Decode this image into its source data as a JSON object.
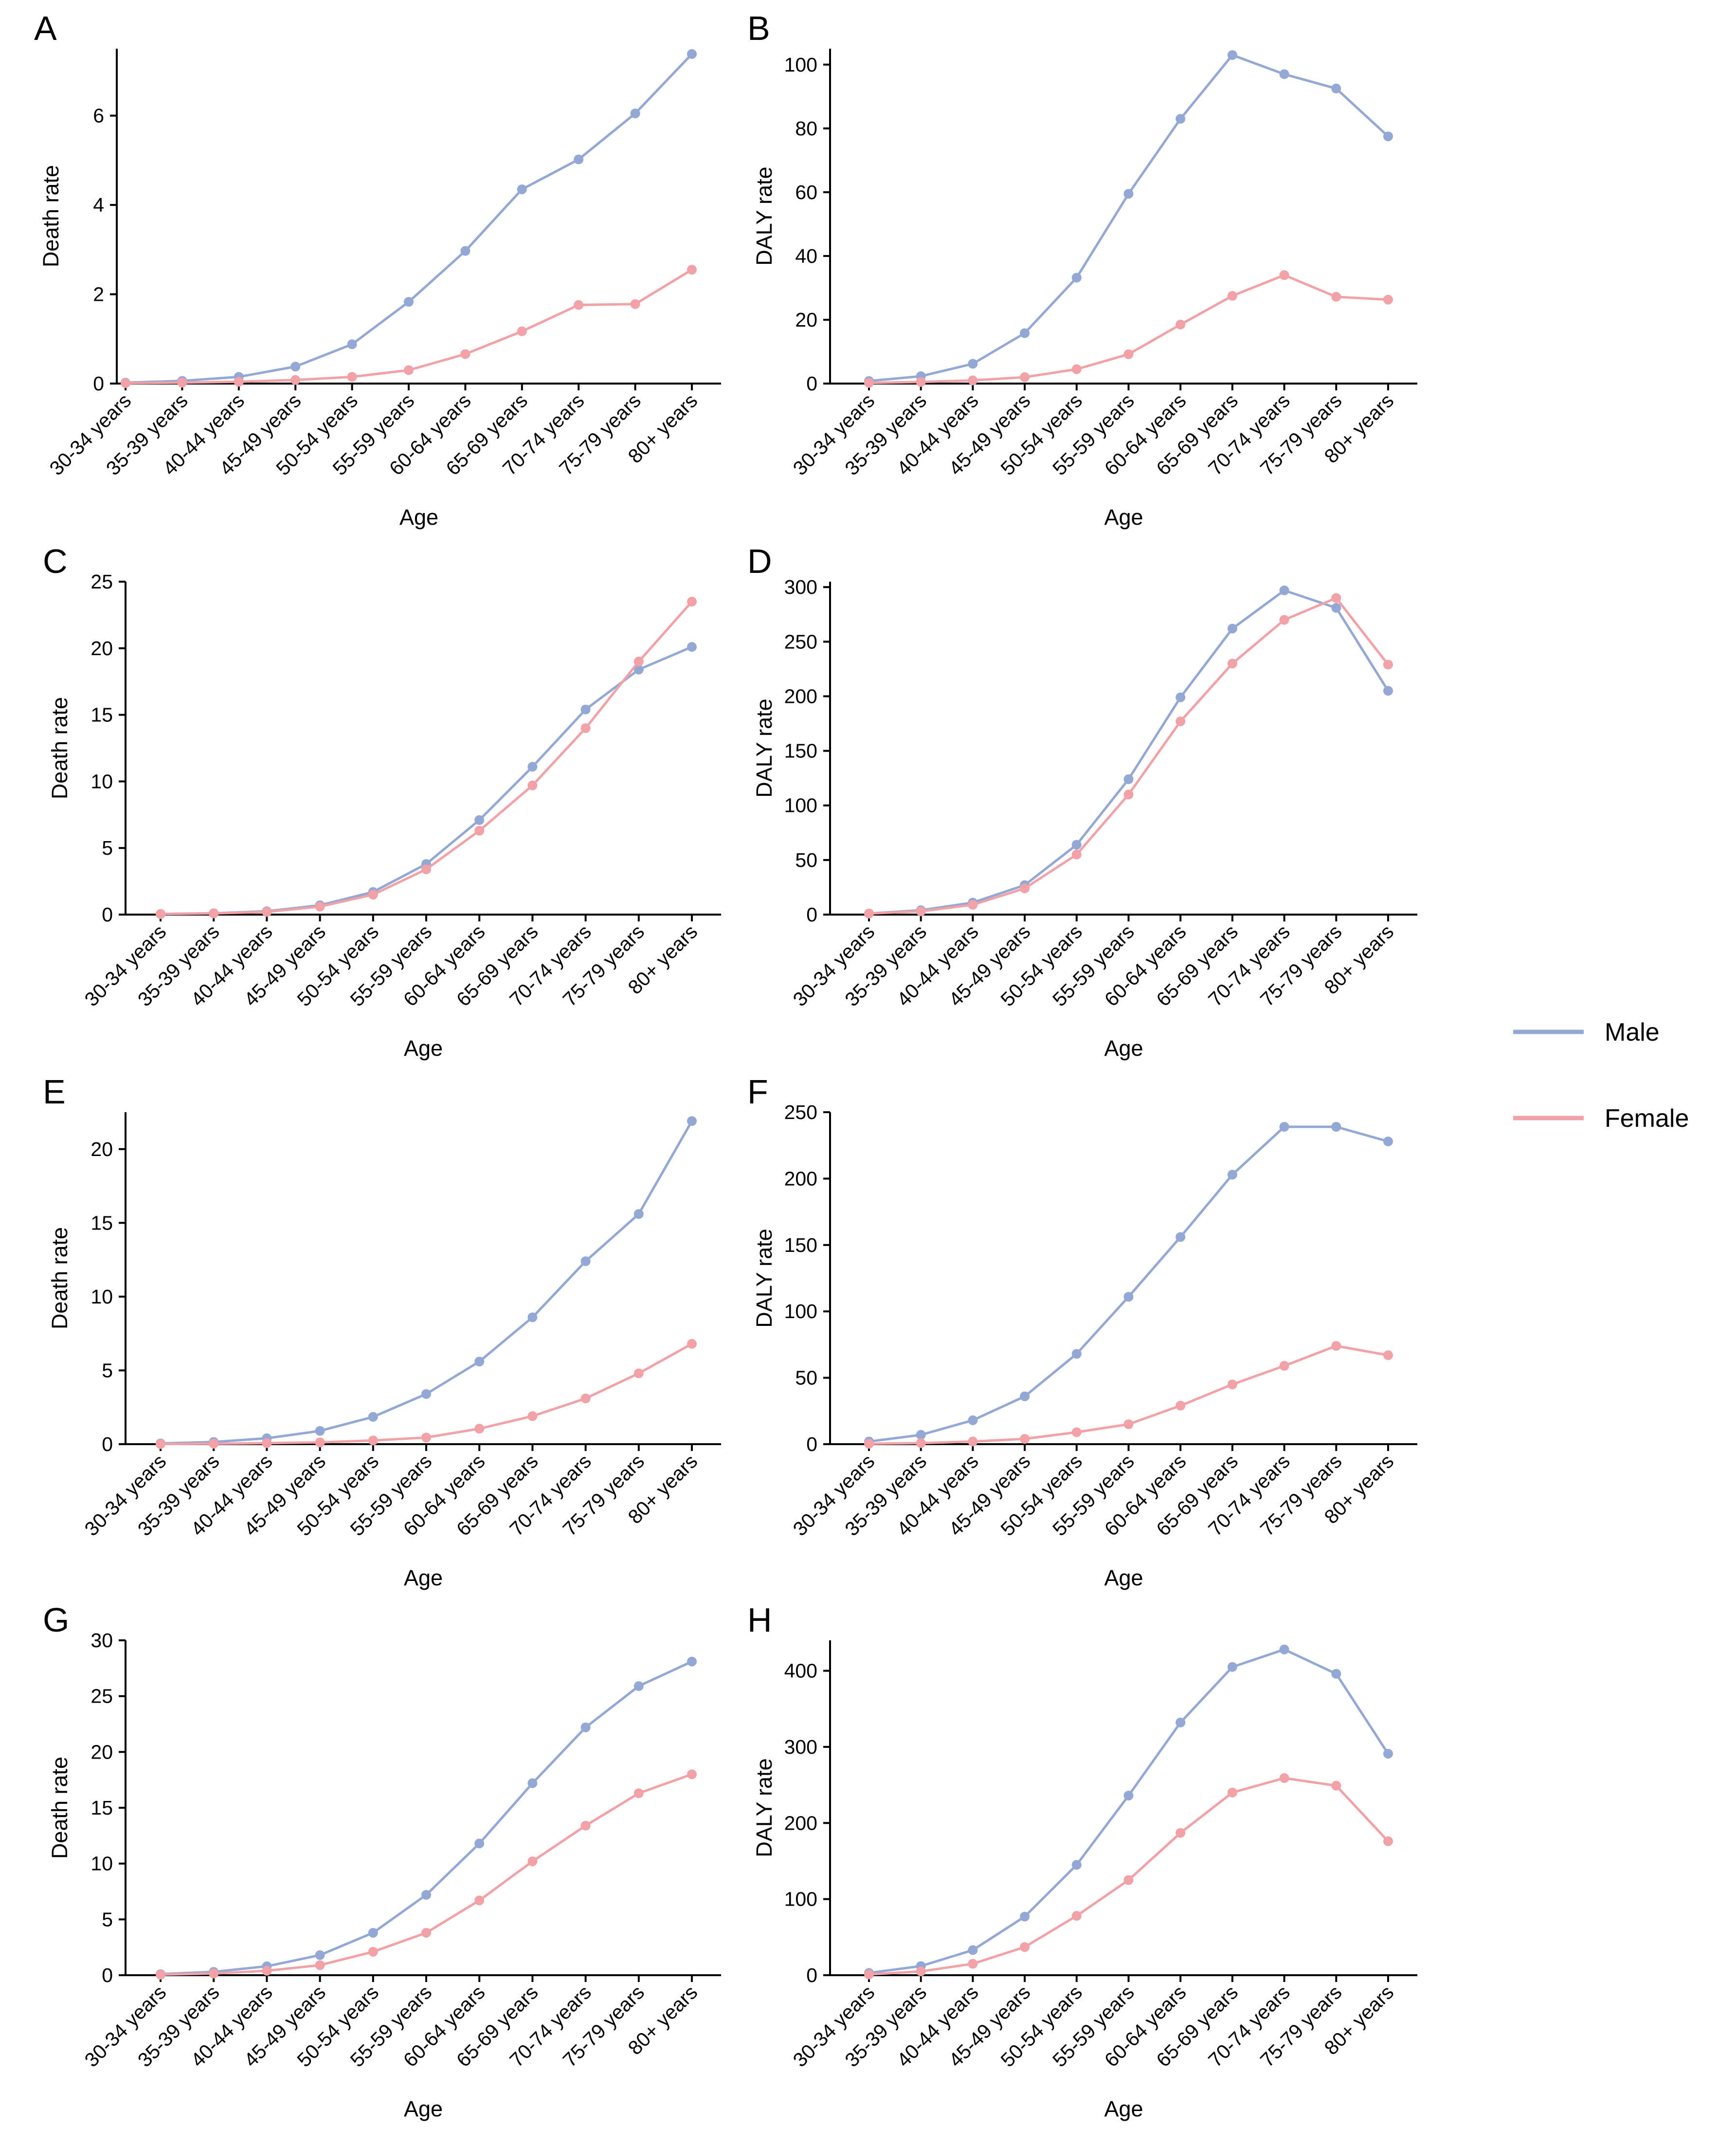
{
  "colors": {
    "male": "#94A8D6",
    "female": "#F2A1A6"
  },
  "legend": {
    "male_label": "Male",
    "female_label": "Female"
  },
  "chart_data": [
    {
      "type": "line",
      "panel": "A",
      "xlabel": "Age",
      "ylabel": "Death rate",
      "categories": [
        "30-34 years",
        "35-39 years",
        "40-44 years",
        "45-49 years",
        "50-54 years",
        "55-59 years",
        "60-64 years",
        "65-69 years",
        "70-74 years",
        "75-79 years",
        "80+ years"
      ],
      "ylim": [
        0,
        7.5
      ],
      "yticks": [
        0,
        2,
        4,
        6
      ],
      "series": [
        {
          "name": "Male",
          "values": [
            0.02,
            0.06,
            0.15,
            0.38,
            0.88,
            1.83,
            2.97,
            4.35,
            5.02,
            6.05,
            7.38
          ]
        },
        {
          "name": "Female",
          "values": [
            0.01,
            0.02,
            0.04,
            0.08,
            0.15,
            0.3,
            0.66,
            1.17,
            1.76,
            1.78,
            2.55
          ]
        }
      ]
    },
    {
      "type": "line",
      "panel": "B",
      "xlabel": "Age",
      "ylabel": "DALY rate",
      "categories": [
        "30-34 years",
        "35-39 years",
        "40-44 years",
        "45-49 years",
        "50-54 years",
        "55-59 years",
        "60-64 years",
        "65-69 years",
        "70-74 years",
        "75-79 years",
        "80+ years"
      ],
      "ylim": [
        0,
        105
      ],
      "yticks": [
        0,
        20,
        40,
        60,
        80,
        100
      ],
      "series": [
        {
          "name": "Male",
          "values": [
            0.8,
            2.3,
            6.2,
            15.8,
            33.2,
            59.5,
            83,
            103,
            97,
            92.5,
            77.5
          ]
        },
        {
          "name": "Female",
          "values": [
            0.2,
            0.5,
            1.0,
            2.0,
            4.5,
            9.2,
            18.5,
            27.5,
            34,
            27.2,
            26.3
          ]
        }
      ]
    },
    {
      "type": "line",
      "panel": "C",
      "xlabel": "Age",
      "ylabel": "Death rate",
      "categories": [
        "30-34 years",
        "35-39 years",
        "40-44 years",
        "45-49 years",
        "50-54 years",
        "55-59 years",
        "60-64 years",
        "65-69 years",
        "70-74 years",
        "75-79 years",
        "80+ years"
      ],
      "ylim": [
        0,
        25
      ],
      "yticks": [
        0,
        5,
        10,
        15,
        20,
        25
      ],
      "series": [
        {
          "name": "Male",
          "values": [
            0.05,
            0.1,
            0.25,
            0.7,
            1.7,
            3.8,
            7.1,
            11.1,
            15.4,
            18.4,
            20.1
          ]
        },
        {
          "name": "Female",
          "values": [
            0.04,
            0.09,
            0.2,
            0.6,
            1.5,
            3.4,
            6.3,
            9.7,
            14.0,
            19.0,
            23.5
          ]
        }
      ]
    },
    {
      "type": "line",
      "panel": "D",
      "xlabel": "Age",
      "ylabel": "DALY rate",
      "categories": [
        "30-34 years",
        "35-39 years",
        "40-44 years",
        "45-49 years",
        "50-54 years",
        "55-59 years",
        "60-64 years",
        "65-69 years",
        "70-74 years",
        "75-79 years",
        "80+ years"
      ],
      "ylim": [
        0,
        305
      ],
      "yticks": [
        0,
        50,
        100,
        150,
        200,
        250,
        300
      ],
      "series": [
        {
          "name": "Male",
          "values": [
            1,
            4,
            11,
            27,
            64,
            124,
            199,
            262,
            297,
            281,
            205
          ]
        },
        {
          "name": "Female",
          "values": [
            1,
            3,
            9,
            24,
            55,
            110,
            177,
            230,
            270,
            290,
            229
          ]
        }
      ]
    },
    {
      "type": "line",
      "panel": "E",
      "xlabel": "Age",
      "ylabel": "Death rate",
      "categories": [
        "30-34 years",
        "35-39 years",
        "40-44 years",
        "45-49 years",
        "50-54 years",
        "55-59 years",
        "60-64 years",
        "65-69 years",
        "70-74 years",
        "75-79 years",
        "80+ years"
      ],
      "ylim": [
        0,
        22.5
      ],
      "yticks": [
        0,
        5,
        10,
        15,
        20
      ],
      "series": [
        {
          "name": "Male",
          "values": [
            0.05,
            0.15,
            0.4,
            0.9,
            1.85,
            3.4,
            5.6,
            8.6,
            12.4,
            15.6,
            21.9
          ]
        },
        {
          "name": "Female",
          "values": [
            0.01,
            0.03,
            0.07,
            0.12,
            0.25,
            0.45,
            1.05,
            1.9,
            3.1,
            4.8,
            6.8
          ]
        }
      ]
    },
    {
      "type": "line",
      "panel": "F",
      "xlabel": "Age",
      "ylabel": "DALY rate",
      "categories": [
        "30-34 years",
        "35-39 years",
        "40-44 years",
        "45-49 years",
        "50-54 years",
        "55-59 years",
        "60-64 years",
        "65-69 years",
        "70-74 years",
        "75-79 years",
        "80+ years"
      ],
      "ylim": [
        0,
        250
      ],
      "yticks": [
        0,
        50,
        100,
        150,
        200,
        250
      ],
      "series": [
        {
          "name": "Male",
          "values": [
            2,
            7,
            18,
            36,
            68,
            111,
            156,
            203,
            239,
            239,
            228
          ]
        },
        {
          "name": "Female",
          "values": [
            0.3,
            0.8,
            2,
            4,
            9,
            15,
            29,
            45,
            59,
            74,
            67
          ]
        }
      ]
    },
    {
      "type": "line",
      "panel": "G",
      "xlabel": "Age",
      "ylabel": "Death rate",
      "categories": [
        "30-34 years",
        "35-39 years",
        "40-44 years",
        "45-49 years",
        "50-54 years",
        "55-59 years",
        "60-64 years",
        "65-69 years",
        "70-74 years",
        "75-79 years",
        "80+ years"
      ],
      "ylim": [
        0,
        30
      ],
      "yticks": [
        0,
        5,
        10,
        15,
        20,
        25,
        30
      ],
      "series": [
        {
          "name": "Male",
          "values": [
            0.1,
            0.3,
            0.8,
            1.8,
            3.8,
            7.2,
            11.8,
            17.2,
            22.2,
            25.9,
            28.1
          ]
        },
        {
          "name": "Female",
          "values": [
            0.05,
            0.15,
            0.4,
            0.9,
            2.1,
            3.8,
            6.7,
            10.2,
            13.4,
            16.3,
            18.0
          ]
        }
      ]
    },
    {
      "type": "line",
      "panel": "H",
      "xlabel": "Age",
      "ylabel": "DALY rate",
      "categories": [
        "30-34 years",
        "35-39 years",
        "40-44 years",
        "45-49 years",
        "50-54 years",
        "55-59 years",
        "60-64 years",
        "65-69 years",
        "70-74 years",
        "75-79 years",
        "80+ years"
      ],
      "ylim": [
        0,
        440
      ],
      "yticks": [
        0,
        100,
        200,
        300,
        400
      ],
      "series": [
        {
          "name": "Male",
          "values": [
            3,
            12,
            33,
            77,
            145,
            236,
            332,
            405,
            428,
            396,
            291
          ]
        },
        {
          "name": "Female",
          "values": [
            1,
            5,
            15,
            37,
            78,
            125,
            187,
            240,
            259,
            249,
            176
          ]
        }
      ]
    }
  ]
}
